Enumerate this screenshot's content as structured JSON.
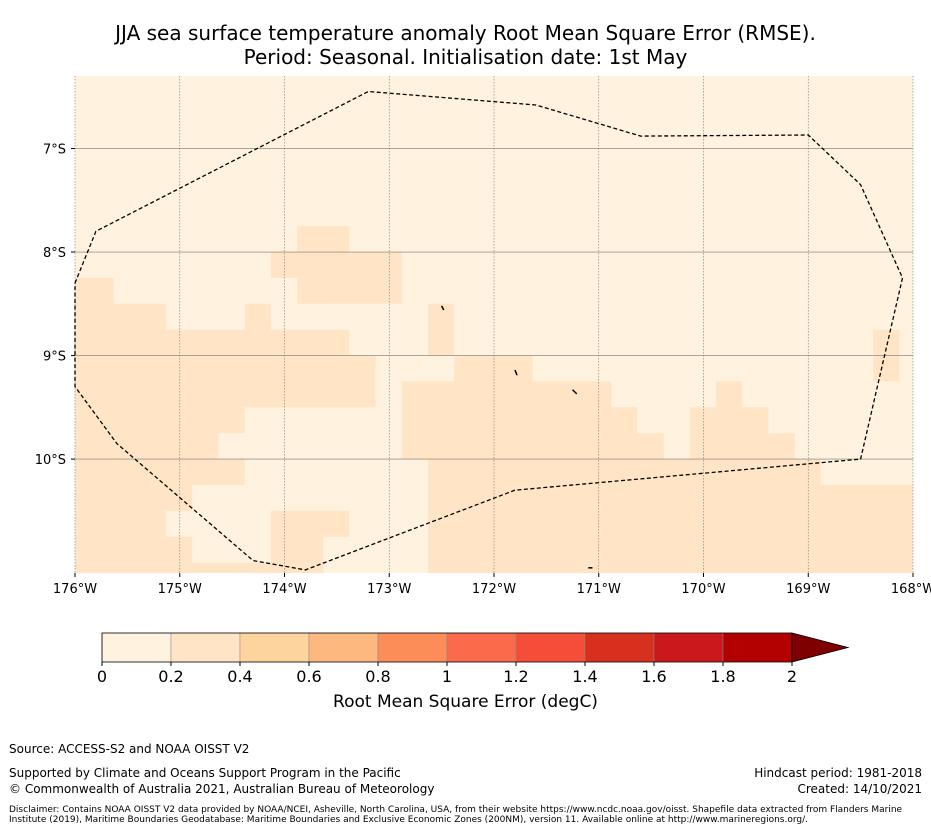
{
  "title_line1": "JJA sea surface temperature anomaly Root Mean Square Error (RMSE).",
  "title_line2": "Period: Seasonal. Initialisation date: 1st May",
  "map": {
    "lon_range": [
      -176,
      -168
    ],
    "lat_range": [
      -11.1,
      -6.3
    ],
    "lon_ticks": [
      {
        "value": -176,
        "label": "176°W"
      },
      {
        "value": -175,
        "label": "175°W"
      },
      {
        "value": -174,
        "label": "174°W"
      },
      {
        "value": -173,
        "label": "173°W"
      },
      {
        "value": -172,
        "label": "172°W"
      },
      {
        "value": -171,
        "label": "171°W"
      },
      {
        "value": -170,
        "label": "170°W"
      },
      {
        "value": -169,
        "label": "169°W"
      },
      {
        "value": -168,
        "label": "168°W"
      }
    ],
    "lat_ticks": [
      {
        "value": -7,
        "label": "7°S"
      },
      {
        "value": -8,
        "label": "8°S"
      },
      {
        "value": -9,
        "label": "9°S"
      },
      {
        "value": -10,
        "label": "10°S"
      }
    ],
    "colors": {
      "low": "#fff2df",
      "mid": "#ffe5c6",
      "boundary": "#000000",
      "grid": "#777777"
    },
    "eez_boundary": [
      [
        -176,
        -8.3
      ],
      [
        -175.8,
        -7.8
      ],
      [
        -173.2,
        -6.45
      ],
      [
        -171.6,
        -6.58
      ],
      [
        -170.6,
        -6.88
      ],
      [
        -169.0,
        -6.87
      ],
      [
        -168.5,
        -7.35
      ],
      [
        -168.1,
        -8.25
      ],
      [
        -168.5,
        -10.0
      ],
      [
        -171.8,
        -10.3
      ],
      [
        -173.8,
        -11.07
      ],
      [
        -174.3,
        -10.98
      ],
      [
        -175.6,
        -9.85
      ],
      [
        -176,
        -9.3
      ]
    ],
    "islands": [
      [
        [
          -172.5,
          -8.52
        ],
        [
          -172.48,
          -8.56
        ]
      ],
      [
        [
          -171.8,
          -9.14
        ],
        [
          -171.78,
          -9.19
        ]
      ],
      [
        [
          -171.25,
          -9.33
        ],
        [
          -171.21,
          -9.37
        ]
      ],
      [
        [
          -171.1,
          -11.05
        ],
        [
          -171.06,
          -11.05
        ]
      ]
    ],
    "anomaly_cells_mid": [
      [
        -176.0,
        -8.25,
        -175.63,
        -8.5
      ],
      [
        -176.0,
        -8.5,
        -175.13,
        -8.75
      ],
      [
        -174.38,
        -8.5,
        -174.13,
        -8.75
      ],
      [
        -176.0,
        -8.75,
        -173.38,
        -9.0
      ],
      [
        -176.0,
        -9.0,
        -173.13,
        -9.25
      ],
      [
        -176.0,
        -9.25,
        -173.13,
        -9.5
      ],
      [
        -176.0,
        -9.5,
        -174.38,
        -9.75
      ],
      [
        -176.0,
        -9.75,
        -174.63,
        -10.0
      ],
      [
        -176.0,
        -10.0,
        -174.38,
        -10.25
      ],
      [
        -176.0,
        -10.25,
        -174.88,
        -10.5
      ],
      [
        -176.0,
        -10.5,
        -175.13,
        -10.75
      ],
      [
        -176.0,
        -10.75,
        -174.88,
        -11.0
      ],
      [
        -176.0,
        -11.0,
        -174.13,
        -11.1
      ],
      [
        -174.13,
        -10.5,
        -173.38,
        -10.75
      ],
      [
        -174.13,
        -10.75,
        -173.63,
        -11.1
      ],
      [
        -173.88,
        -7.75,
        -173.38,
        -8.0
      ],
      [
        -174.13,
        -8.0,
        -172.88,
        -8.25
      ],
      [
        -173.88,
        -8.25,
        -172.88,
        -8.5
      ],
      [
        -172.63,
        -8.5,
        -172.38,
        -9.0
      ],
      [
        -172.38,
        -9.0,
        -171.63,
        -9.25
      ],
      [
        -172.88,
        -9.25,
        -170.88,
        -9.5
      ],
      [
        -172.88,
        -9.5,
        -170.63,
        -9.75
      ],
      [
        -172.88,
        -9.75,
        -170.38,
        -10.0
      ],
      [
        -172.63,
        -10.0,
        -170.0,
        -10.25
      ],
      [
        -172.63,
        -10.25,
        -168.0,
        -11.1
      ],
      [
        -170.13,
        -9.5,
        -169.63,
        -10.0
      ],
      [
        -169.88,
        -9.25,
        -169.63,
        -9.5
      ],
      [
        -169.63,
        -9.5,
        -169.38,
        -9.75
      ],
      [
        -169.63,
        -9.75,
        -169.13,
        -10.0
      ],
      [
        -170.13,
        -10.0,
        -168.88,
        -10.25
      ],
      [
        -168.88,
        -10.25,
        -168.63,
        -10.5
      ],
      [
        -168.63,
        -10.5,
        -168.0,
        -10.75
      ],
      [
        -168.38,
        -8.75,
        -168.13,
        -9.25
      ]
    ]
  },
  "colorbar": {
    "label": "Root Mean Square Error (degC)",
    "extend": "max",
    "ticks": [
      "0",
      "0.2",
      "0.4",
      "0.6",
      "0.8",
      "1",
      "1.2",
      "1.4",
      "1.6",
      "1.8",
      "2"
    ],
    "bins": [
      "#fff2df",
      "#ffe5c6",
      "#fdd49e",
      "#fdb87f",
      "#fc8d59",
      "#fb6a4a",
      "#f44d38",
      "#d7301f",
      "#cb181d",
      "#b30000"
    ],
    "extend_color": "#7f0000"
  },
  "footer": {
    "source": "Source: ACCESS-S2 and NOAA OISST V2",
    "supported": "Supported by Climate and Oceans Support Program in the Pacific",
    "copyright": "© Commonwealth of Australia 2021, Australian Bureau of Meteorology",
    "hindcast": "Hindcast period: 1981-2018",
    "created": "Created: 14/10/2021",
    "disclaimer": "Disclaimer: Contains NOAA OISST V2 data provided by NOAA/NCEI, Asheville, North Carolina, USA, from their website https://www.ncdc.noaa.gov/oisst. Shapefile data extracted from Flanders Marine Institute (2019), Maritime Boundaries Geodatabase: Maritime Boundaries and Exclusive Economic Zones (200NM), version 11. Available online at http://www.marineregions.org/."
  }
}
